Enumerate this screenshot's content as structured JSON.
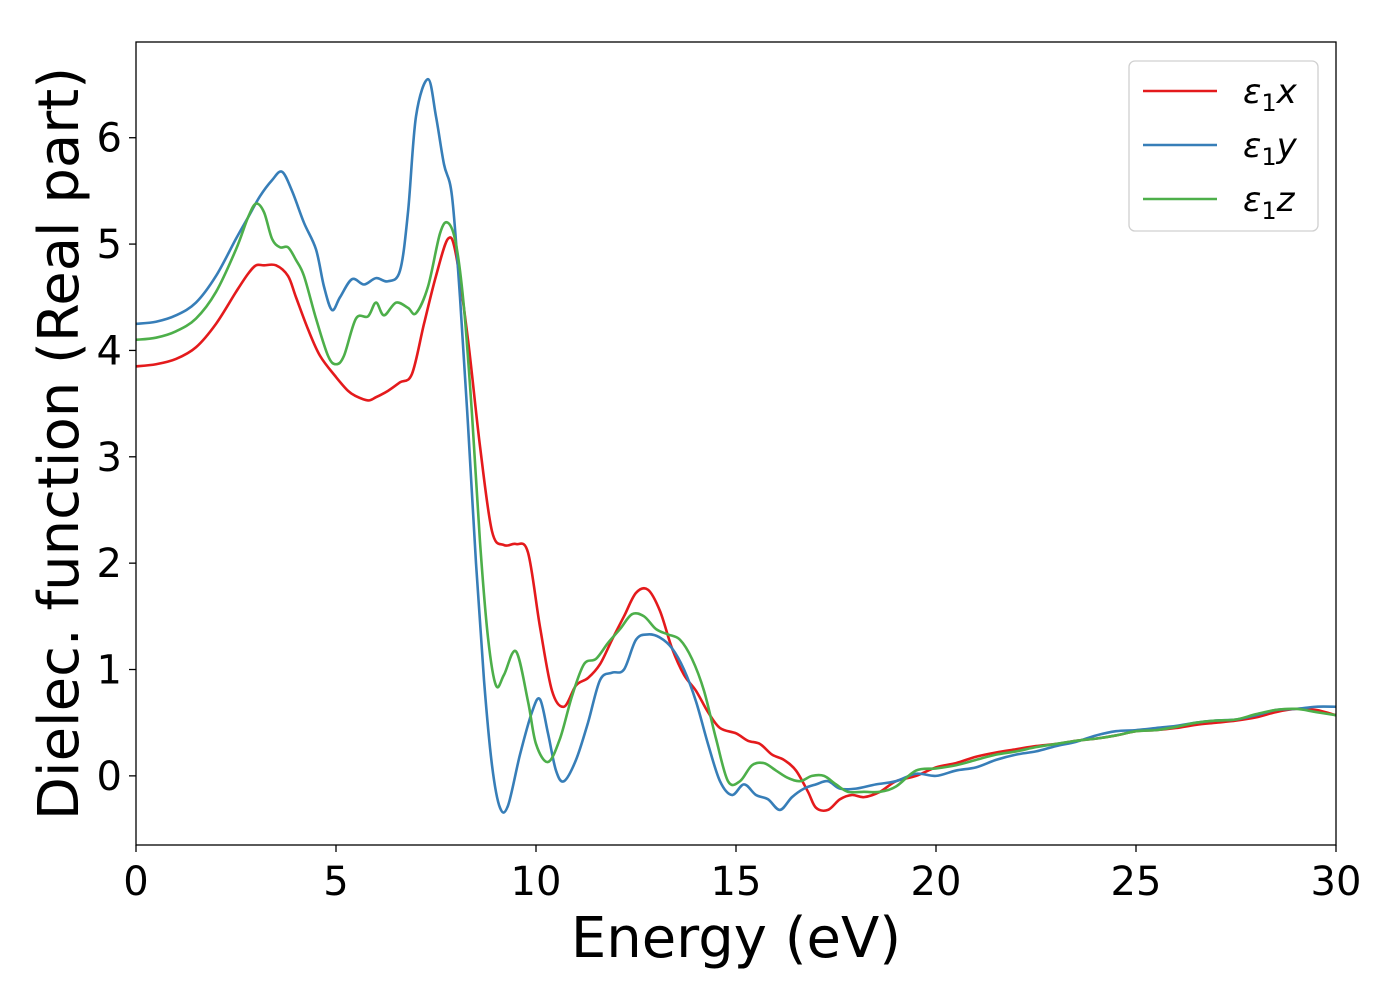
{
  "chart_data": {
    "type": "line",
    "title": "",
    "xlabel": "Energy (eV)",
    "ylabel": "Dielec. function (Real part)",
    "xlim": [
      0,
      30
    ],
    "ylim": [
      -0.65,
      6.9
    ],
    "xticks": [
      0,
      5,
      10,
      15,
      20,
      25,
      30
    ],
    "yticks": [
      0,
      1,
      2,
      3,
      4,
      5,
      6
    ],
    "grid": false,
    "legend": "top-right",
    "series": [
      {
        "name": "ε₁x",
        "legend_main": "ε",
        "legend_sub": "1",
        "legend_tail": "x",
        "color": "#e41a1c",
        "x": [
          0,
          0.5,
          1,
          1.5,
          2,
          2.5,
          2.8,
          3.0,
          3.2,
          3.5,
          3.8,
          4.0,
          4.3,
          4.6,
          5.0,
          5.3,
          5.5,
          5.8,
          6.0,
          6.3,
          6.6,
          6.9,
          7.2,
          7.5,
          7.8,
          8.0,
          8.3,
          8.6,
          8.9,
          9.2,
          9.5,
          9.8,
          10.1,
          10.4,
          10.7,
          11.0,
          11.3,
          11.6,
          11.9,
          12.2,
          12.5,
          12.8,
          13.1,
          13.4,
          13.7,
          14.0,
          14.3,
          14.6,
          15.0,
          15.3,
          15.6,
          15.9,
          16.2,
          16.5,
          16.8,
          17.0,
          17.3,
          17.6,
          17.9,
          18.2,
          18.6,
          19.0,
          19.5,
          20.0,
          20.5,
          21.0,
          21.5,
          22.0,
          22.5,
          23.0,
          23.5,
          24.0,
          24.5,
          25.0,
          25.5,
          26.0,
          26.5,
          27.0,
          27.5,
          28.0,
          28.5,
          29.0,
          29.5,
          30.0
        ],
        "y": [
          3.85,
          3.87,
          3.92,
          4.03,
          4.25,
          4.55,
          4.72,
          4.8,
          4.8,
          4.8,
          4.7,
          4.5,
          4.2,
          3.95,
          3.75,
          3.62,
          3.57,
          3.53,
          3.56,
          3.62,
          3.7,
          3.78,
          4.25,
          4.7,
          5.05,
          4.9,
          4.1,
          3.1,
          2.3,
          2.17,
          2.18,
          2.1,
          1.4,
          0.8,
          0.65,
          0.85,
          0.92,
          1.05,
          1.28,
          1.5,
          1.72,
          1.75,
          1.55,
          1.2,
          0.95,
          0.8,
          0.6,
          0.45,
          0.4,
          0.33,
          0.3,
          0.2,
          0.15,
          0.05,
          -0.15,
          -0.3,
          -0.32,
          -0.22,
          -0.18,
          -0.2,
          -0.15,
          -0.05,
          0.0,
          0.08,
          0.12,
          0.18,
          0.22,
          0.25,
          0.28,
          0.3,
          0.33,
          0.35,
          0.38,
          0.42,
          0.43,
          0.45,
          0.48,
          0.5,
          0.52,
          0.55,
          0.6,
          0.63,
          0.62,
          0.57
        ]
      },
      {
        "name": "ε₁y",
        "legend_main": "ε",
        "legend_sub": "1",
        "legend_tail": "y",
        "color": "#377eb8",
        "x": [
          0,
          0.5,
          1,
          1.5,
          2,
          2.5,
          2.8,
          3.1,
          3.4,
          3.65,
          3.9,
          4.2,
          4.5,
          4.7,
          4.9,
          5.1,
          5.4,
          5.7,
          6.0,
          6.3,
          6.6,
          6.8,
          7.0,
          7.3,
          7.5,
          7.7,
          7.9,
          8.1,
          8.3,
          8.5,
          8.7,
          8.9,
          9.1,
          9.3,
          9.6,
          9.9,
          10.1,
          10.3,
          10.5,
          10.7,
          11.0,
          11.3,
          11.6,
          11.9,
          12.2,
          12.5,
          12.8,
          13.1,
          13.4,
          13.7,
          14.0,
          14.3,
          14.6,
          14.9,
          15.2,
          15.5,
          15.8,
          16.1,
          16.4,
          16.7,
          17.0,
          17.3,
          17.6,
          18.0,
          18.5,
          19.0,
          19.5,
          20.0,
          20.5,
          21.0,
          21.5,
          22.0,
          22.5,
          23.0,
          23.5,
          24.0,
          24.5,
          25.0,
          25.5,
          26.0,
          26.5,
          27.0,
          27.5,
          28.0,
          28.5,
          29.0,
          29.5,
          30.0
        ],
        "y": [
          4.25,
          4.27,
          4.33,
          4.45,
          4.7,
          5.05,
          5.25,
          5.45,
          5.6,
          5.68,
          5.5,
          5.2,
          4.95,
          4.6,
          4.38,
          4.5,
          4.67,
          4.62,
          4.68,
          4.65,
          4.75,
          5.3,
          6.2,
          6.55,
          6.2,
          5.75,
          5.45,
          4.5,
          3.3,
          2.0,
          0.9,
          0.1,
          -0.3,
          -0.28,
          0.2,
          0.6,
          0.72,
          0.4,
          0.05,
          -0.05,
          0.15,
          0.5,
          0.9,
          0.97,
          1.0,
          1.28,
          1.33,
          1.3,
          1.2,
          1.0,
          0.7,
          0.3,
          -0.05,
          -0.18,
          -0.08,
          -0.18,
          -0.22,
          -0.32,
          -0.2,
          -0.12,
          -0.08,
          -0.05,
          -0.12,
          -0.12,
          -0.08,
          -0.05,
          0.02,
          0.0,
          0.05,
          0.08,
          0.15,
          0.2,
          0.23,
          0.28,
          0.32,
          0.38,
          0.42,
          0.43,
          0.45,
          0.47,
          0.5,
          0.52,
          0.53,
          0.57,
          0.62,
          0.63,
          0.65,
          0.65
        ]
      },
      {
        "name": "ε₁z",
        "legend_main": "ε",
        "legend_sub": "1",
        "legend_tail": "z",
        "color": "#4daf4a",
        "x": [
          0,
          0.5,
          1,
          1.5,
          2,
          2.5,
          2.8,
          3.0,
          3.2,
          3.4,
          3.6,
          3.8,
          4.0,
          4.2,
          4.5,
          4.8,
          5.0,
          5.2,
          5.5,
          5.8,
          6.0,
          6.2,
          6.5,
          6.8,
          7.0,
          7.3,
          7.6,
          7.8,
          8.0,
          8.2,
          8.4,
          8.6,
          8.8,
          9.0,
          9.2,
          9.5,
          9.8,
          10.0,
          10.3,
          10.6,
          10.9,
          11.2,
          11.5,
          11.8,
          12.1,
          12.4,
          12.7,
          13.0,
          13.3,
          13.6,
          13.9,
          14.2,
          14.5,
          14.8,
          15.1,
          15.4,
          15.7,
          16.0,
          16.3,
          16.6,
          16.9,
          17.2,
          17.5,
          17.8,
          18.2,
          18.6,
          19.0,
          19.5,
          20.0,
          20.5,
          21.0,
          21.5,
          22.0,
          22.5,
          23.0,
          23.5,
          24.0,
          24.5,
          25.0,
          25.5,
          26.0,
          26.5,
          27.0,
          27.5,
          28.0,
          28.5,
          29.0,
          29.5,
          30.0
        ],
        "y": [
          4.1,
          4.12,
          4.18,
          4.3,
          4.55,
          4.95,
          5.25,
          5.38,
          5.3,
          5.05,
          4.97,
          4.97,
          4.85,
          4.7,
          4.3,
          3.95,
          3.87,
          3.95,
          4.3,
          4.32,
          4.45,
          4.33,
          4.45,
          4.4,
          4.35,
          4.6,
          5.1,
          5.2,
          5.0,
          4.4,
          3.4,
          2.2,
          1.3,
          0.85,
          0.95,
          1.17,
          0.7,
          0.3,
          0.13,
          0.35,
          0.75,
          1.05,
          1.1,
          1.25,
          1.38,
          1.52,
          1.5,
          1.38,
          1.33,
          1.28,
          1.1,
          0.8,
          0.35,
          -0.05,
          -0.05,
          0.1,
          0.12,
          0.05,
          -0.02,
          -0.05,
          0.0,
          0.0,
          -0.08,
          -0.15,
          -0.15,
          -0.15,
          -0.1,
          0.05,
          0.07,
          0.1,
          0.15,
          0.2,
          0.23,
          0.27,
          0.3,
          0.33,
          0.35,
          0.38,
          0.42,
          0.43,
          0.46,
          0.5,
          0.52,
          0.53,
          0.58,
          0.62,
          0.63,
          0.6,
          0.57
        ]
      }
    ]
  }
}
